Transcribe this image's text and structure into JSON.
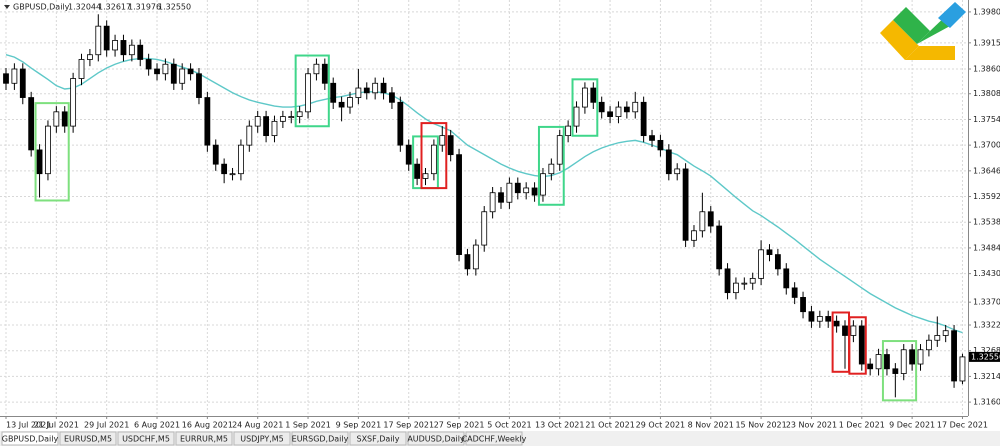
{
  "header": {
    "symbol": "GBPUSD,Daily",
    "ohlc": [
      "1.32044",
      "1.32617",
      "1.31976",
      "1.32550"
    ]
  },
  "tabs": [
    "GBPUSD,Daily",
    "EURUSD,M5",
    "USDCHF,M5",
    "EURRUR,M5",
    "USDJPY,M5",
    "EURSGD,Daily",
    "SXSF,Daily",
    "AUDUSD,Daily",
    "CADCHF,Weekly"
  ],
  "chart_data": {
    "type": "candlestick",
    "categories": [
      "13 Jul 2021",
      null,
      null,
      null,
      null,
      null,
      "21 Jul 2021",
      null,
      null,
      null,
      null,
      null,
      "29 Jul 2021",
      null,
      null,
      null,
      null,
      null,
      "6 Aug 2021",
      null,
      null,
      null,
      null,
      null,
      "16 Aug 2021",
      null,
      null,
      null,
      null,
      null,
      "24 Aug 2021",
      null,
      null,
      null,
      null,
      null,
      "1 Sep 2021",
      null,
      null,
      null,
      null,
      null,
      "9 Sep 2021",
      null,
      null,
      null,
      null,
      null,
      "17 Sep 2021",
      null,
      null,
      null,
      null,
      null,
      "27 Sep 2021",
      null,
      null,
      null,
      null,
      null,
      "5 Oct 2021",
      null,
      null,
      null,
      null,
      null,
      "13 Oct 2021",
      null,
      null,
      null,
      null,
      null,
      "21 Oct 2021",
      null,
      null,
      null,
      null,
      null,
      "29 Oct 2021",
      null,
      null,
      null,
      null,
      null,
      "8 Nov 2021",
      null,
      null,
      null,
      null,
      null,
      "15 Nov 2021",
      null,
      null,
      null,
      null,
      null,
      "23 Nov 2021",
      null,
      null,
      null,
      null,
      null,
      "1 Dec 2021",
      null,
      null,
      null,
      null,
      null,
      "9 Dec 2021",
      null,
      null,
      null,
      null,
      null,
      "17 Dec 2021"
    ],
    "open": [
      1.385,
      1.383,
      1.386,
      1.38,
      1.369,
      1.364,
      1.374,
      1.377,
      1.374,
      1.384,
      1.388,
      1.389,
      1.395,
      1.39,
      1.392,
      1.389,
      1.391,
      1.388,
      1.386,
      1.385,
      1.387,
      1.383,
      1.386,
      1.385,
      1.38,
      1.37,
      1.366,
      1.364,
      1.364,
      1.37,
      1.374,
      1.376,
      1.372,
      1.375,
      1.376,
      1.376,
      1.377,
      1.385,
      1.387,
      1.383,
      1.379,
      1.378,
      1.38,
      1.382,
      1.381,
      1.383,
      1.381,
      1.379,
      1.37,
      1.366,
      1.363,
      1.364,
      1.37,
      1.372,
      1.368,
      1.347,
      1.344,
      1.349,
      1.356,
      1.36,
      1.358,
      1.362,
      1.36,
      1.361,
      1.3595,
      1.364,
      1.366,
      1.372,
      1.374,
      1.378,
      1.382,
      1.379,
      1.377,
      1.376,
      1.378,
      1.377,
      1.379,
      1.372,
      1.371,
      1.369,
      1.364,
      1.365,
      1.35,
      1.352,
      1.356,
      1.353,
      1.344,
      1.339,
      1.341,
      1.341,
      1.342,
      1.348,
      1.347,
      1.344,
      1.34,
      1.338,
      1.335,
      1.333,
      1.334,
      1.333,
      1.332,
      1.33,
      1.332,
      1.324,
      1.323,
      1.326,
      1.323,
      1.322,
      1.327,
      1.324,
      1.327,
      1.329,
      1.33,
      1.331,
      1.32044
    ],
    "high": [
      1.3862,
      1.3872,
      1.3872,
      1.3812,
      1.3702,
      1.3752,
      1.3782,
      1.3782,
      1.3852,
      1.3892,
      1.3902,
      1.3975,
      1.3962,
      1.3932,
      1.3932,
      1.3922,
      1.3922,
      1.3892,
      1.3872,
      1.3882,
      1.3882,
      1.3872,
      1.3872,
      1.3862,
      1.3812,
      1.3712,
      1.3672,
      1.3652,
      1.3712,
      1.3752,
      1.3772,
      1.3772,
      1.3762,
      1.3772,
      1.3772,
      1.3782,
      1.3862,
      1.3882,
      1.3882,
      1.3842,
      1.3802,
      1.3812,
      1.386,
      1.3832,
      1.3842,
      1.3842,
      1.3822,
      1.3802,
      1.3712,
      1.3672,
      1.3652,
      1.3712,
      1.374,
      1.3732,
      1.3692,
      1.3482,
      1.3502,
      1.3572,
      1.3612,
      1.3612,
      1.3632,
      1.3632,
      1.3622,
      1.3622,
      1.3652,
      1.3672,
      1.3732,
      1.3752,
      1.3792,
      1.3832,
      1.3832,
      1.3802,
      1.3782,
      1.3792,
      1.3792,
      1.3812,
      1.3802,
      1.3732,
      1.3722,
      1.3702,
      1.3662,
      1.3662,
      1.3532,
      1.36,
      1.3572,
      1.3542,
      1.3452,
      1.3422,
      1.3422,
      1.3432,
      1.35,
      1.3492,
      1.3482,
      1.3452,
      1.3412,
      1.3392,
      1.3362,
      1.3352,
      1.3352,
      1.3342,
      1.3332,
      1.3332,
      1.3332,
      1.3252,
      1.3272,
      1.3272,
      1.3242,
      1.3282,
      1.3282,
      1.3282,
      1.3302,
      1.334,
      1.3322,
      1.3322,
      1.32617
    ],
    "low": [
      1.3816,
      1.3816,
      1.3786,
      1.3676,
      1.359,
      1.3626,
      1.3726,
      1.3726,
      1.3726,
      1.3826,
      1.3866,
      1.3876,
      1.3886,
      1.3886,
      1.3876,
      1.3876,
      1.3866,
      1.3846,
      1.3836,
      1.3836,
      1.3816,
      1.3816,
      1.3836,
      1.3786,
      1.3686,
      1.3646,
      1.362,
      1.3626,
      1.3626,
      1.3686,
      1.3726,
      1.3706,
      1.3706,
      1.3736,
      1.3746,
      1.3746,
      1.3756,
      1.3836,
      1.3816,
      1.3776,
      1.375,
      1.3766,
      1.3786,
      1.3796,
      1.3796,
      1.3796,
      1.3776,
      1.3686,
      1.3646,
      1.3616,
      1.3616,
      1.3626,
      1.3686,
      1.3666,
      1.3456,
      1.3426,
      1.3426,
      1.3476,
      1.3546,
      1.3566,
      1.3566,
      1.3586,
      1.3586,
      1.3581,
      1.3581,
      1.3626,
      1.3646,
      1.3706,
      1.3726,
      1.3766,
      1.3776,
      1.3756,
      1.3746,
      1.3746,
      1.3756,
      1.3756,
      1.3706,
      1.3696,
      1.3676,
      1.3626,
      1.3626,
      1.3486,
      1.3486,
      1.3506,
      1.3516,
      1.3426,
      1.3376,
      1.3376,
      1.3396,
      1.3396,
      1.3406,
      1.3456,
      1.3426,
      1.3386,
      1.3366,
      1.3336,
      1.3316,
      1.3316,
      1.3316,
      1.3306,
      1.323,
      1.3286,
      1.3226,
      1.3216,
      1.3216,
      1.3216,
      1.317,
      1.3206,
      1.3226,
      1.3226,
      1.3256,
      1.3276,
      1.3286,
      1.319,
      1.31976
    ],
    "close": [
      1.383,
      1.386,
      1.38,
      1.369,
      1.364,
      1.374,
      1.377,
      1.374,
      1.384,
      1.388,
      1.389,
      1.395,
      1.39,
      1.392,
      1.389,
      1.391,
      1.388,
      1.386,
      1.385,
      1.387,
      1.383,
      1.386,
      1.385,
      1.38,
      1.37,
      1.366,
      1.364,
      1.364,
      1.37,
      1.374,
      1.376,
      1.372,
      1.375,
      1.376,
      1.376,
      1.377,
      1.385,
      1.387,
      1.383,
      1.379,
      1.378,
      1.38,
      1.382,
      1.381,
      1.383,
      1.381,
      1.379,
      1.37,
      1.366,
      1.363,
      1.364,
      1.37,
      1.372,
      1.368,
      1.347,
      1.344,
      1.349,
      1.356,
      1.36,
      1.358,
      1.362,
      1.36,
      1.361,
      1.3595,
      1.364,
      1.366,
      1.372,
      1.374,
      1.378,
      1.382,
      1.379,
      1.377,
      1.376,
      1.378,
      1.377,
      1.379,
      1.372,
      1.371,
      1.369,
      1.364,
      1.365,
      1.35,
      1.352,
      1.356,
      1.353,
      1.344,
      1.339,
      1.341,
      1.341,
      1.342,
      1.348,
      1.347,
      1.344,
      1.34,
      1.338,
      1.335,
      1.333,
      1.334,
      1.333,
      1.332,
      1.33,
      1.332,
      1.324,
      1.323,
      1.326,
      1.323,
      1.322,
      1.327,
      1.324,
      1.327,
      1.329,
      1.33,
      1.331,
      1.32044,
      1.3255
    ],
    "ma": {
      "color": "#5ec8c8",
      "values": [
        1.389,
        1.3885,
        1.3875,
        1.3862,
        1.385,
        1.3838,
        1.3825,
        1.3818,
        1.382,
        1.3828,
        1.384,
        1.3852,
        1.3862,
        1.387,
        1.3876,
        1.388,
        1.3882,
        1.3882,
        1.388,
        1.3876,
        1.387,
        1.3864,
        1.3858,
        1.385,
        1.384,
        1.383,
        1.382,
        1.381,
        1.3802,
        1.3795,
        1.379,
        1.3786,
        1.3782,
        1.378,
        1.378,
        1.3782,
        1.3786,
        1.3792,
        1.3796,
        1.38,
        1.3802,
        1.3806,
        1.381,
        1.3812,
        1.3812,
        1.381,
        1.3805,
        1.3795,
        1.3782,
        1.3768,
        1.3755,
        1.3745,
        1.3738,
        1.373,
        1.3715,
        1.37,
        1.369,
        1.368,
        1.367,
        1.366,
        1.3652,
        1.3645,
        1.364,
        1.3636,
        1.3634,
        1.3636,
        1.3642,
        1.3652,
        1.3664,
        1.3676,
        1.3686,
        1.3694,
        1.37,
        1.3705,
        1.3708,
        1.371,
        1.3706,
        1.37,
        1.3694,
        1.3686,
        1.368,
        1.3668,
        1.3656,
        1.3646,
        1.3635,
        1.362,
        1.3605,
        1.359,
        1.3576,
        1.3562,
        1.3552,
        1.354,
        1.3528,
        1.3515,
        1.3502,
        1.3488,
        1.3474,
        1.346,
        1.3448,
        1.3436,
        1.3424,
        1.3412,
        1.34,
        1.3388,
        1.3378,
        1.3368,
        1.3358,
        1.335,
        1.3342,
        1.3336,
        1.333,
        1.3326,
        1.332,
        1.3312,
        1.3306
      ]
    },
    "up_color": "#ffffff",
    "down_color": "#000000",
    "ylim": [
      1.3135,
      1.4005
    ],
    "yticks": [
      {
        "value": 1.398,
        "label": "1.39800"
      },
      {
        "value": 1.3915,
        "label": "1.39150"
      },
      {
        "value": 1.386,
        "label": "1.38600"
      },
      {
        "value": 1.3808,
        "label": "1.38080"
      },
      {
        "value": 1.3754,
        "label": "1.37540"
      },
      {
        "value": 1.37,
        "label": "1.37000"
      },
      {
        "value": 1.3646,
        "label": "1.36460"
      },
      {
        "value": 1.3592,
        "label": "1.35920"
      },
      {
        "value": 1.3538,
        "label": "1.35380"
      },
      {
        "value": 1.3484,
        "label": "1.34840"
      },
      {
        "value": 1.343,
        "label": "1.34300"
      },
      {
        "value": 1.337,
        "label": "1.33700"
      },
      {
        "value": 1.3322,
        "label": "1.33220"
      },
      {
        "value": 1.3268,
        "label": "1.32680"
      },
      {
        "value": 1.3214,
        "label": "1.32140"
      },
      {
        "value": 1.316,
        "label": "1.31600"
      }
    ],
    "grid": true
  }
}
